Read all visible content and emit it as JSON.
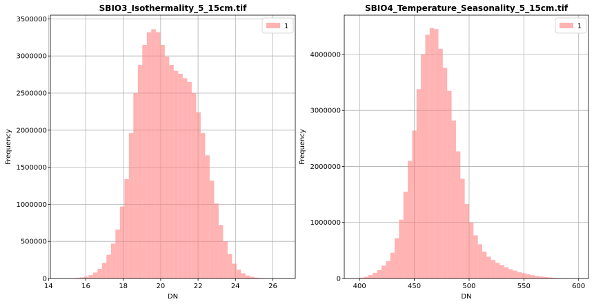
{
  "chart_data": [
    {
      "type": "histogram",
      "title": "SBIO3_Isothermality_5_15cm.tif",
      "xlabel": "DN",
      "ylabel": "Frequency",
      "xlim": [
        14.1,
        27.2
      ],
      "ylim": [
        0,
        3550000
      ],
      "xticks": [
        14,
        16,
        18,
        20,
        22,
        24,
        26
      ],
      "yticks": [
        0,
        500000,
        1000000,
        1500000,
        2000000,
        2500000,
        3000000,
        3500000
      ],
      "grid": true,
      "legend": {
        "position": "top-right",
        "entries": [
          "1"
        ]
      },
      "color": "#ff8080",
      "bin_edges": [
        14.7,
        14.94,
        15.18,
        15.42,
        15.66,
        15.9,
        16.14,
        16.38,
        16.62,
        16.86,
        17.1,
        17.34,
        17.58,
        17.82,
        18.06,
        18.3,
        18.54,
        18.78,
        19.02,
        19.26,
        19.5,
        19.74,
        19.98,
        20.22,
        20.46,
        20.7,
        20.94,
        21.18,
        21.42,
        21.66,
        21.9,
        22.14,
        22.38,
        22.62,
        22.86,
        23.1,
        23.34,
        23.58,
        23.82,
        24.06,
        24.3,
        24.54,
        24.78,
        25.02,
        25.26,
        25.5,
        25.74,
        25.98,
        26.22,
        26.46,
        26.7
      ],
      "counts": [
        2000,
        3000,
        5000,
        8000,
        15000,
        25000,
        45000,
        80000,
        130000,
        210000,
        320000,
        470000,
        660000,
        970000,
        1340000,
        1960000,
        2500000,
        2880000,
        3150000,
        3320000,
        3360000,
        3320000,
        3150000,
        2990000,
        2880000,
        2800000,
        2760000,
        2700000,
        2650000,
        2500000,
        2240000,
        1960000,
        1660000,
        1320000,
        1010000,
        720000,
        500000,
        330000,
        200000,
        120000,
        70000,
        40000,
        22000,
        12000,
        7000,
        4000,
        2000,
        1000,
        500,
        200
      ]
    },
    {
      "type": "histogram",
      "title": "SBIO4_Temperature_Seasonality_5_15cm.tif",
      "xlabel": "DN",
      "ylabel": "Frequency",
      "xlim": [
        386,
        609
      ],
      "ylim": [
        0,
        4700000
      ],
      "xticks": [
        400,
        450,
        500,
        550,
        600
      ],
      "yticks": [
        0,
        1000000,
        2000000,
        3000000,
        4000000
      ],
      "grid": true,
      "legend": {
        "position": "top-right",
        "entries": [
          "1"
        ]
      },
      "color": "#ff8080",
      "bin_edges": [
        396,
        400,
        404,
        408,
        412,
        416,
        420,
        424,
        428,
        432,
        436,
        440,
        444,
        448,
        452,
        456,
        460,
        464,
        468,
        472,
        476,
        480,
        484,
        488,
        492,
        496,
        500,
        504,
        508,
        512,
        516,
        520,
        524,
        528,
        532,
        536,
        540,
        544,
        548,
        552,
        556,
        560,
        564,
        568,
        572,
        576,
        580,
        584,
        588,
        592,
        596
      ],
      "counts": [
        5000,
        15000,
        30000,
        60000,
        100000,
        150000,
        230000,
        310000,
        460000,
        720000,
        1050000,
        1550000,
        2100000,
        2640000,
        3380000,
        4000000,
        4350000,
        4470000,
        4450000,
        4100000,
        3760000,
        3350000,
        2820000,
        2270000,
        1780000,
        1330000,
        1000000,
        770000,
        610000,
        480000,
        390000,
        330000,
        280000,
        240000,
        200000,
        165000,
        140000,
        115000,
        95000,
        75000,
        60000,
        45000,
        35000,
        25000,
        18000,
        12000,
        8000,
        5000,
        3000,
        2000
      ]
    }
  ]
}
